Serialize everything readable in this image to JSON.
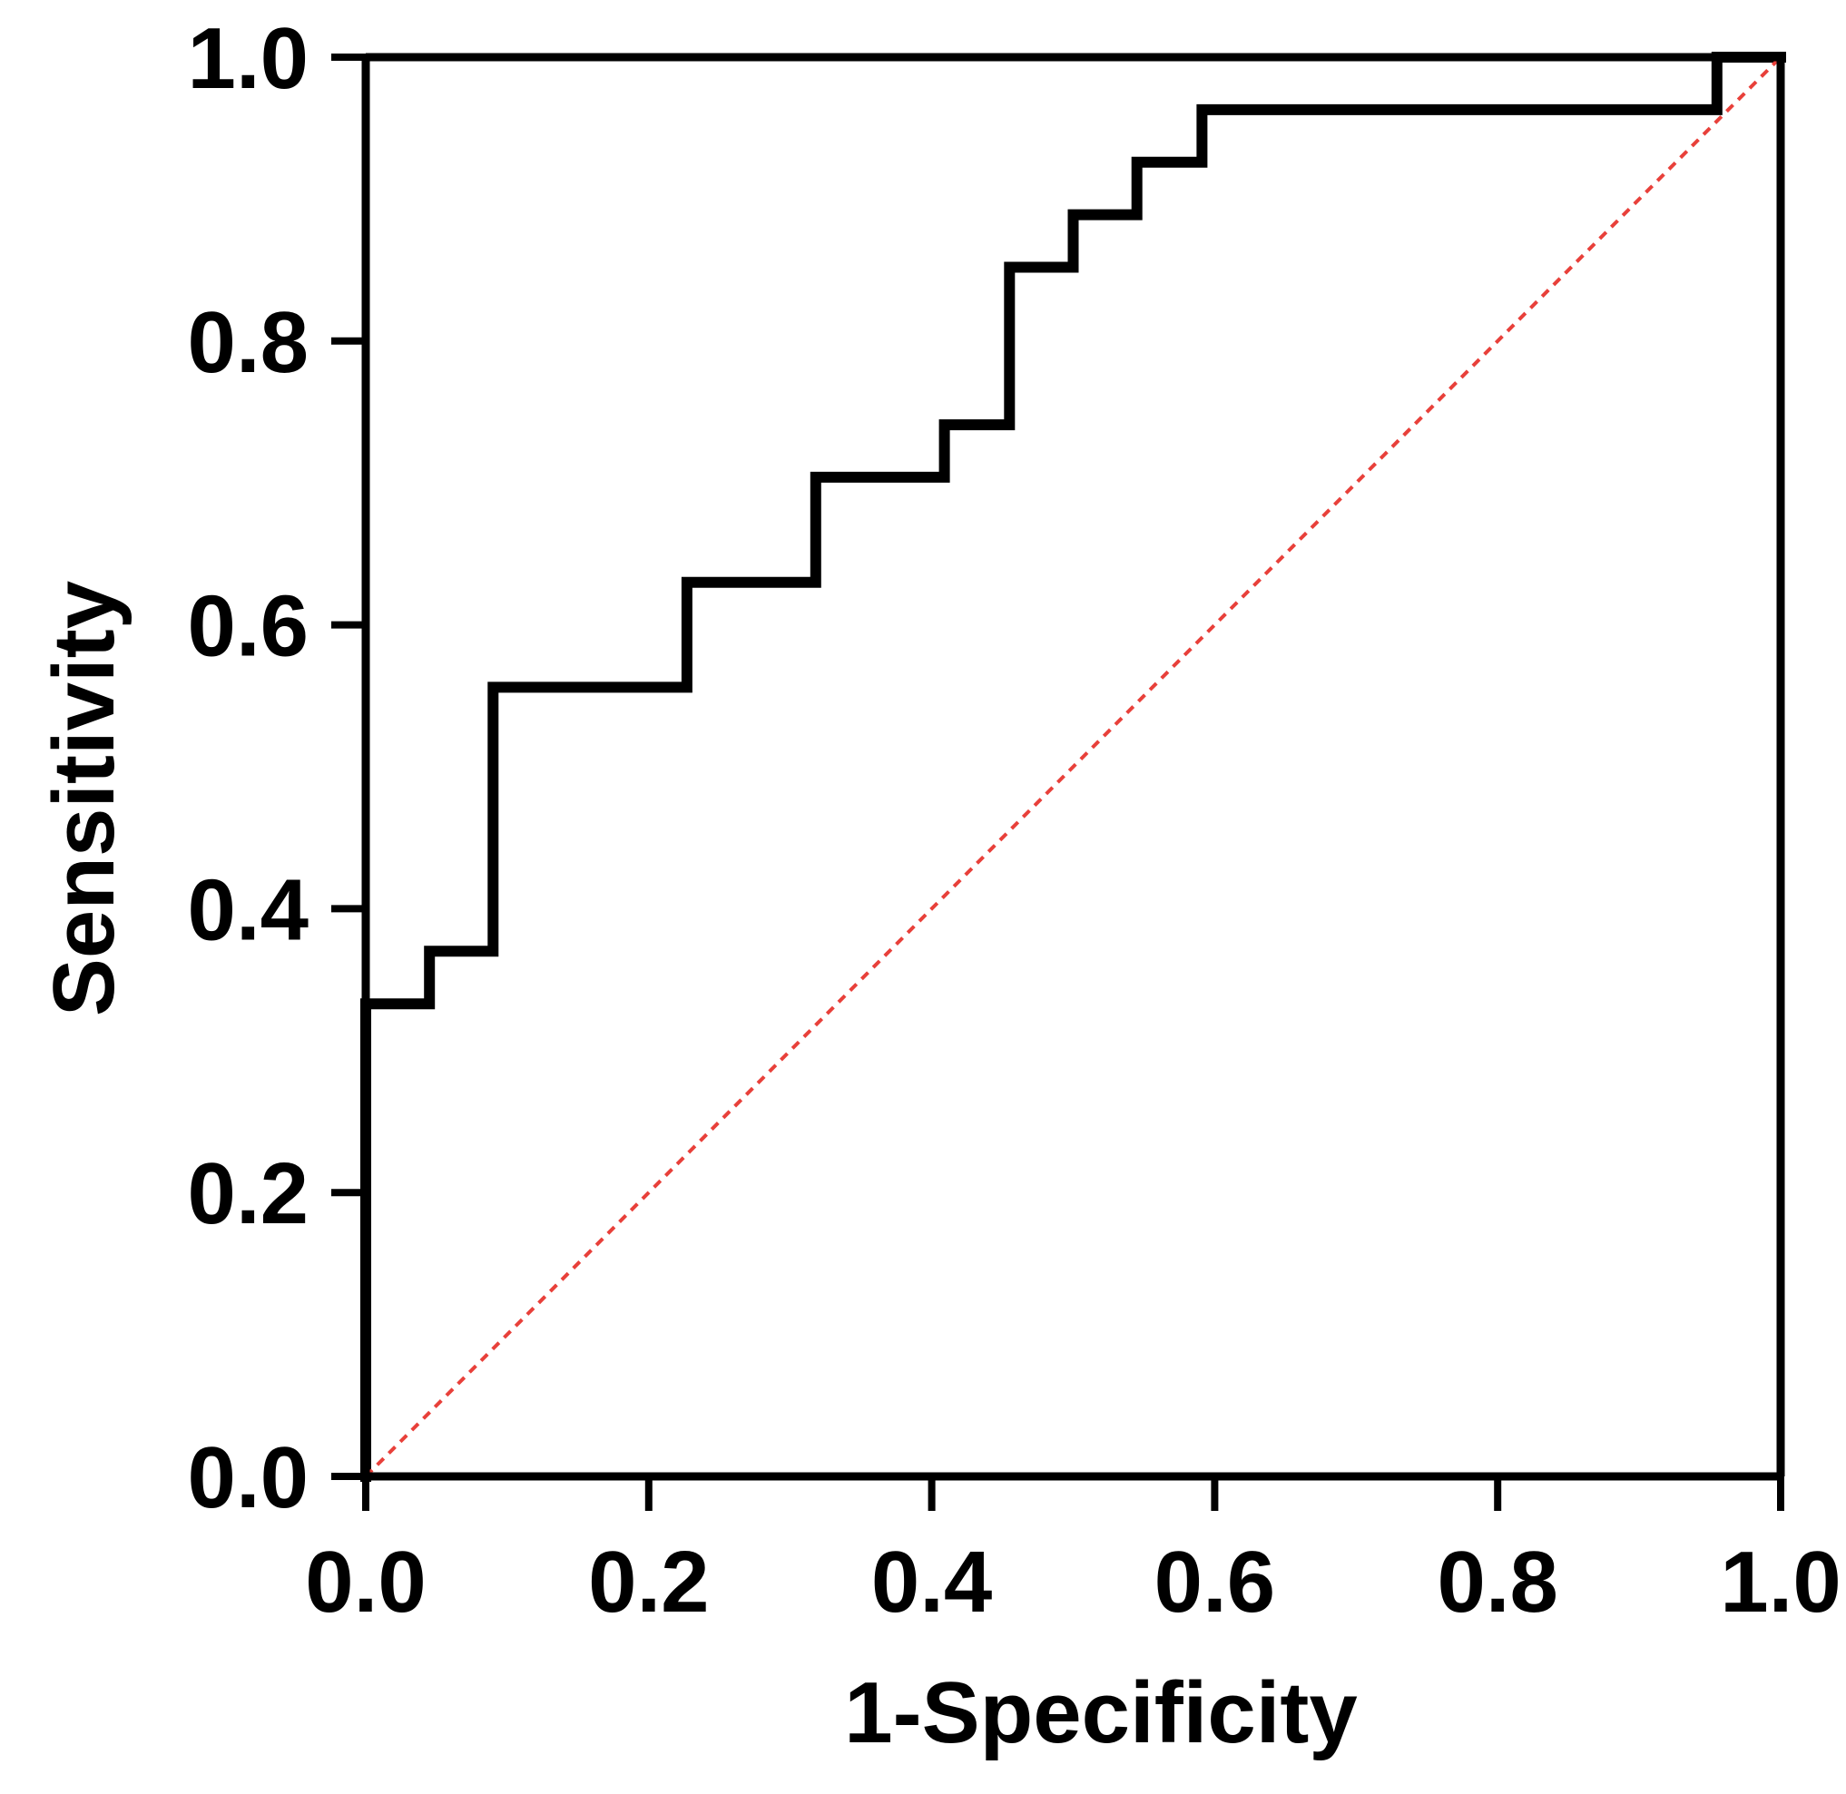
{
  "chart_data": {
    "type": "line",
    "title": "",
    "xlabel": "1-Specificity",
    "ylabel": "Sensitivity",
    "xlim": [
      0,
      1
    ],
    "ylim": [
      0,
      1
    ],
    "x_ticks": [
      "0.0",
      "0.2",
      "0.4",
      "0.6",
      "0.8",
      "1.0"
    ],
    "y_ticks": [
      "0.0",
      "0.2",
      "0.4",
      "0.6",
      "0.8",
      "1.0"
    ],
    "grid": false,
    "legend": "none",
    "series": [
      {
        "style": "step",
        "color": "#000000",
        "points": [
          [
            0.0,
            0.0
          ],
          [
            0.0,
            0.333
          ],
          [
            0.045,
            0.333
          ],
          [
            0.045,
            0.37
          ],
          [
            0.09,
            0.37
          ],
          [
            0.09,
            0.556
          ],
          [
            0.227,
            0.556
          ],
          [
            0.227,
            0.63
          ],
          [
            0.318,
            0.63
          ],
          [
            0.318,
            0.704
          ],
          [
            0.409,
            0.704
          ],
          [
            0.409,
            0.741
          ],
          [
            0.455,
            0.741
          ],
          [
            0.455,
            0.852
          ],
          [
            0.5,
            0.852
          ],
          [
            0.5,
            0.889
          ],
          [
            0.545,
            0.889
          ],
          [
            0.545,
            0.926
          ],
          [
            0.591,
            0.926
          ],
          [
            0.591,
            0.963
          ],
          [
            0.955,
            0.963
          ],
          [
            0.955,
            1.0
          ],
          [
            1.0,
            1.0
          ]
        ]
      },
      {
        "style": "dotted-reference",
        "color": "#e8403a",
        "points": [
          [
            0.0,
            0.0
          ],
          [
            1.0,
            1.0
          ]
        ]
      }
    ]
  }
}
